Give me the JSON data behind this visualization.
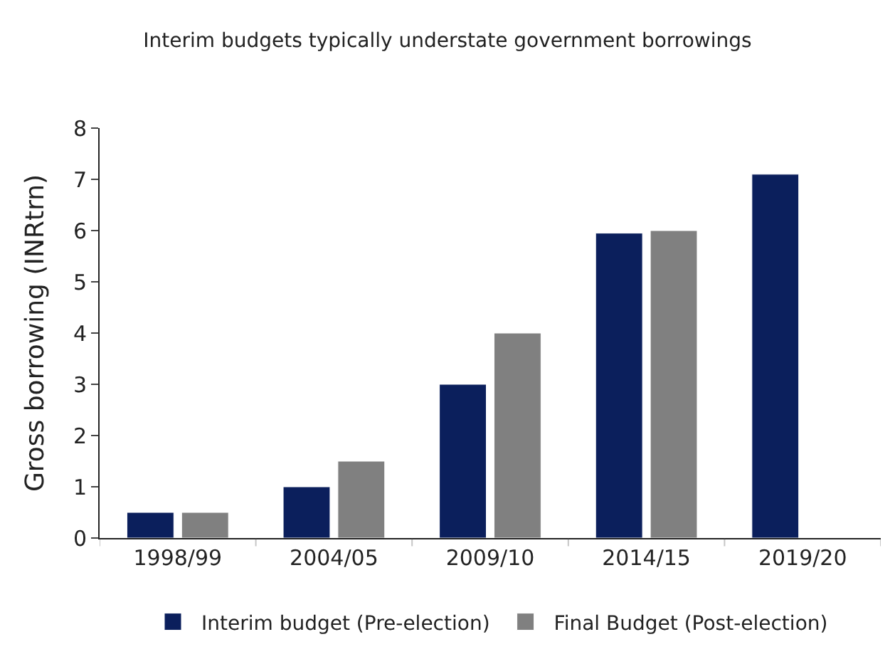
{
  "chart_data": {
    "type": "bar",
    "title": "Interim budgets typically understate government borrowings",
    "ylabel": "Gross borrowing (INRtrn)",
    "categories": [
      "1998/99",
      "2004/05",
      "2009/10",
      "2014/15",
      "2019/20"
    ],
    "series": [
      {
        "name": "Interim budget (Pre-election)",
        "color": "#0b1f5c",
        "values": [
          0.5,
          1.0,
          3.0,
          5.95,
          7.1
        ]
      },
      {
        "name": "Final Budget (Post-election)",
        "color": "#808080",
        "values": [
          0.5,
          1.5,
          4.0,
          6.0,
          null
        ]
      }
    ],
    "ylim": [
      0,
      8
    ],
    "yticks": [
      0,
      1,
      2,
      3,
      4,
      5,
      6,
      7,
      8
    ],
    "grid": false,
    "legend": "bottom"
  }
}
